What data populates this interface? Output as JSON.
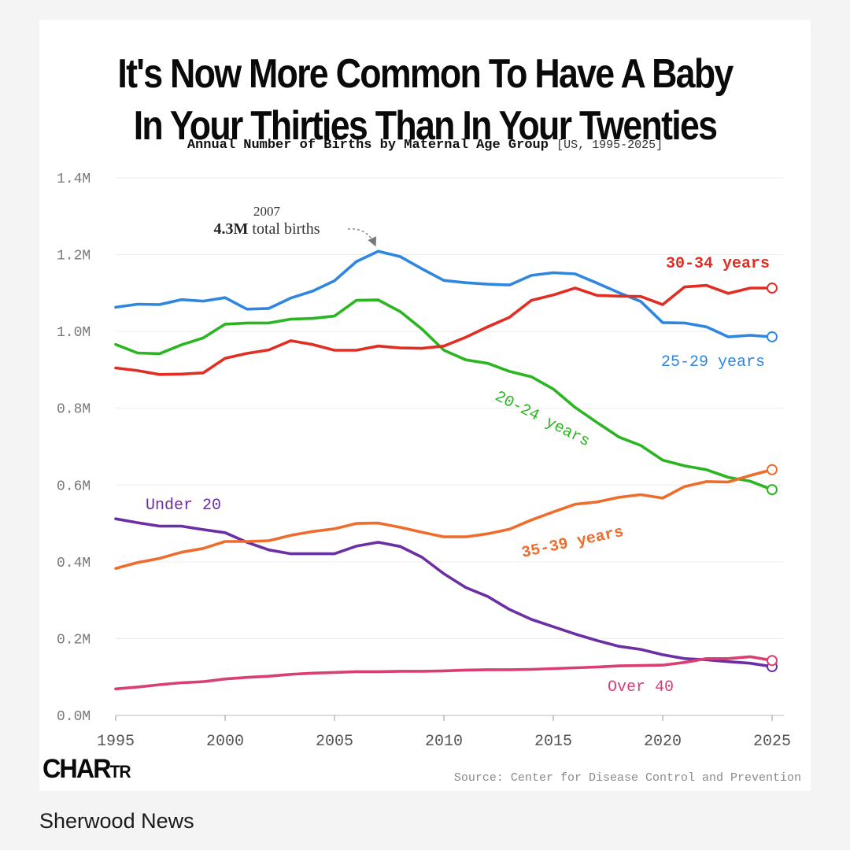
{
  "title_line1": "It's Now More Common To Have A Baby",
  "title_line2": "In Your Thirties Than In Your Twenties",
  "subtitle": "Annual Number of Births by Maternal Age Group",
  "subtitle_range": "[US, 1995-2025]",
  "logo_text": "CHARTR",
  "source_text": "Source: Center for Disease Control and Prevention",
  "footer_text": "Sherwood News",
  "chart_data": {
    "type": "line",
    "title": "Annual Number of Births by Maternal Age Group",
    "xlabel": "",
    "ylabel": "",
    "xlim": [
      1995,
      2025
    ],
    "ylim": [
      0,
      1.4
    ],
    "x_ticks": [
      1995,
      2000,
      2005,
      2010,
      2015,
      2020,
      2025
    ],
    "y_ticks": [
      0,
      0.2,
      0.4,
      0.6,
      0.8,
      1.0,
      1.2,
      1.4
    ],
    "y_tick_labels": [
      "0.0M",
      "0.2M",
      "0.4M",
      "0.6M",
      "0.8M",
      "1.0M",
      "1.2M",
      "1.4M"
    ],
    "grid": true,
    "x": [
      1995,
      1996,
      1997,
      1998,
      1999,
      2000,
      2001,
      2002,
      2003,
      2004,
      2005,
      2006,
      2007,
      2008,
      2009,
      2010,
      2011,
      2012,
      2013,
      2014,
      2015,
      2016,
      2017,
      2018,
      2019,
      2020,
      2021,
      2022,
      2023,
      2024,
      2025
    ],
    "series": [
      {
        "name": "Under 20",
        "label": "Under 20",
        "color": "#6b2fa3",
        "values": [
          0.512,
          0.502,
          0.493,
          0.493,
          0.484,
          0.476,
          0.451,
          0.431,
          0.421,
          0.421,
          0.421,
          0.441,
          0.451,
          0.44,
          0.412,
          0.369,
          0.333,
          0.31,
          0.276,
          0.25,
          0.231,
          0.212,
          0.195,
          0.18,
          0.172,
          0.158,
          0.148,
          0.145,
          0.14,
          0.136,
          0.127
        ]
      },
      {
        "name": "20-24 years",
        "label": "20-24 years",
        "color": "#2ab521",
        "values": [
          0.966,
          0.944,
          0.942,
          0.965,
          0.983,
          1.019,
          1.022,
          1.022,
          1.032,
          1.034,
          1.04,
          1.081,
          1.082,
          1.052,
          1.006,
          0.951,
          0.926,
          0.917,
          0.896,
          0.882,
          0.85,
          0.802,
          0.763,
          0.725,
          0.703,
          0.665,
          0.65,
          0.64,
          0.62,
          0.61,
          0.588
        ]
      },
      {
        "name": "25-29 years",
        "label": "25-29 years",
        "color": "#2f86df",
        "values": [
          1.063,
          1.071,
          1.07,
          1.083,
          1.079,
          1.088,
          1.058,
          1.06,
          1.087,
          1.105,
          1.132,
          1.182,
          1.209,
          1.195,
          1.163,
          1.133,
          1.127,
          1.123,
          1.121,
          1.146,
          1.153,
          1.15,
          1.126,
          1.101,
          1.078,
          1.023,
          1.022,
          1.012,
          0.986,
          0.99,
          0.986
        ]
      },
      {
        "name": "30-34 years",
        "label": "30-34 years",
        "color": "#e22d22",
        "values": [
          0.905,
          0.898,
          0.888,
          0.889,
          0.892,
          0.93,
          0.943,
          0.952,
          0.976,
          0.966,
          0.951,
          0.951,
          0.962,
          0.957,
          0.956,
          0.962,
          0.985,
          1.012,
          1.037,
          1.081,
          1.095,
          1.113,
          1.094,
          1.092,
          1.091,
          1.07,
          1.116,
          1.12,
          1.099,
          1.113,
          1.113
        ]
      },
      {
        "name": "35-39 years",
        "label": "35-39 years",
        "color": "#ee6d2c",
        "values": [
          0.383,
          0.398,
          0.409,
          0.425,
          0.435,
          0.453,
          0.453,
          0.455,
          0.469,
          0.479,
          0.486,
          0.5,
          0.501,
          0.49,
          0.477,
          0.465,
          0.465,
          0.473,
          0.485,
          0.509,
          0.53,
          0.55,
          0.556,
          0.568,
          0.575,
          0.566,
          0.596,
          0.609,
          0.608,
          0.625,
          0.64
        ]
      },
      {
        "name": "Over 40",
        "label": "Over 40",
        "color": "#d93f73",
        "values": [
          0.069,
          0.074,
          0.08,
          0.085,
          0.088,
          0.095,
          0.099,
          0.102,
          0.107,
          0.11,
          0.112,
          0.114,
          0.114,
          0.115,
          0.115,
          0.116,
          0.118,
          0.119,
          0.119,
          0.12,
          0.122,
          0.124,
          0.126,
          0.129,
          0.13,
          0.131,
          0.138,
          0.148,
          0.148,
          0.153,
          0.143
        ]
      }
    ],
    "annotations": [
      {
        "year_label": "2007",
        "bold_text": "4.3M",
        "text": " total births",
        "points_to": {
          "x": 2007,
          "y": 1.209
        }
      }
    ]
  }
}
